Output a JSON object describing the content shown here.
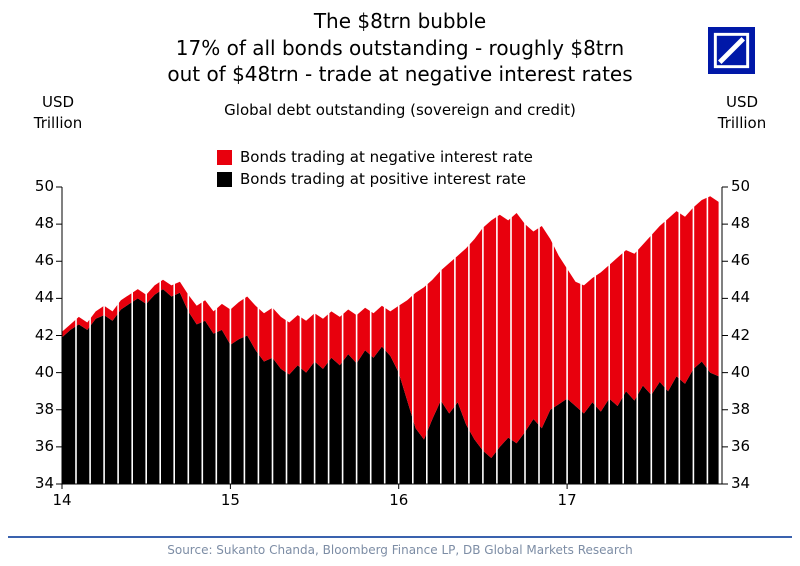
{
  "header": {
    "title": "The $8trn bubble",
    "subtitle_line1": "17% of all bonds outstanding - roughly $8trn",
    "subtitle_line2": "out of $48trn - trade at negative interest rates",
    "description": "Global debt outstanding (sovereign and credit)",
    "unit_left": {
      "line1": "USD",
      "line2": "Trillion"
    },
    "unit_right": {
      "line1": "USD",
      "line2": "Trillion"
    }
  },
  "logo": {
    "name": "deutsche-bank-logo",
    "color": "#0018A8"
  },
  "legend": [
    {
      "label": "Bonds trading at negative interest rate",
      "color": "#E8000D"
    },
    {
      "label": "Bonds trading at positive interest rate",
      "color": "#000000"
    }
  ],
  "footer": {
    "source": "Source: Sukanto Chanda, Bloomberg Finance LP, DB Global Markets Research",
    "rule_color": "#3A62AE"
  },
  "chart_data": {
    "type": "area",
    "stacked": true,
    "title": "Global debt outstanding (sovereign and credit)",
    "ylabel_left": "USD Trillion",
    "ylabel_right": "USD Trillion",
    "grid": false,
    "legend_position": "top",
    "ylim": [
      34,
      50
    ],
    "y_ticks": [
      34,
      36,
      38,
      40,
      42,
      44,
      46,
      48,
      50
    ],
    "xlim": [
      14,
      17.92
    ],
    "x_tick_positions": [
      14,
      15,
      16,
      17
    ],
    "x_tick_labels": [
      "14",
      "15",
      "16",
      "17"
    ],
    "x": [
      14,
      14.05,
      14.1,
      14.15,
      14.2,
      14.25,
      14.3,
      14.35,
      14.4,
      14.45,
      14.5,
      14.55,
      14.6,
      14.65,
      14.7,
      14.75,
      14.8,
      14.85,
      14.9,
      14.95,
      15,
      15.05,
      15.1,
      15.15,
      15.2,
      15.25,
      15.3,
      15.35,
      15.4,
      15.45,
      15.5,
      15.55,
      15.6,
      15.65,
      15.7,
      15.75,
      15.8,
      15.85,
      15.9,
      15.95,
      16,
      16.05,
      16.1,
      16.15,
      16.2,
      16.25,
      16.3,
      16.35,
      16.4,
      16.45,
      16.5,
      16.55,
      16.6,
      16.65,
      16.7,
      16.75,
      16.8,
      16.85,
      16.9,
      16.95,
      17,
      17.05,
      17.1,
      17.15,
      17.2,
      17.25,
      17.3,
      17.35,
      17.4,
      17.45,
      17.5,
      17.55,
      17.6,
      17.65,
      17.7,
      17.75,
      17.8,
      17.85,
      17.9
    ],
    "series": [
      {
        "name": "Bonds trading at positive interest rate",
        "color": "#000000",
        "values": [
          41.9,
          42.3,
          42.6,
          42.3,
          42.9,
          43.1,
          42.8,
          43.4,
          43.7,
          44.0,
          43.7,
          44.2,
          44.5,
          44.1,
          44.3,
          43.3,
          42.6,
          42.8,
          42.1,
          42.3,
          41.5,
          41.8,
          42.0,
          41.2,
          40.6,
          40.8,
          40.2,
          39.9,
          40.4,
          40.0,
          40.6,
          40.2,
          40.8,
          40.4,
          41.0,
          40.5,
          41.2,
          40.8,
          41.4,
          40.9,
          40.0,
          38.5,
          37.0,
          36.4,
          37.5,
          38.5,
          37.8,
          38.4,
          37.2,
          36.4,
          35.8,
          35.4,
          36.0,
          36.5,
          36.2,
          36.8,
          37.5,
          37.0,
          38.0,
          38.3,
          38.6,
          38.2,
          37.8,
          38.4,
          37.9,
          38.6,
          38.2,
          39.0,
          38.5,
          39.3,
          38.8,
          39.5,
          39.0,
          39.8,
          39.4,
          40.2,
          40.6,
          40.0,
          39.8
        ]
      },
      {
        "name": "Bonds trading at negative interest rate",
        "color": "#E8000D",
        "values": [
          0.3,
          0.3,
          0.4,
          0.4,
          0.4,
          0.5,
          0.5,
          0.5,
          0.5,
          0.5,
          0.5,
          0.5,
          0.5,
          0.6,
          0.6,
          0.9,
          1.0,
          1.1,
          1.2,
          1.4,
          1.9,
          2.0,
          2.1,
          2.4,
          2.6,
          2.7,
          2.8,
          2.8,
          2.7,
          2.8,
          2.6,
          2.7,
          2.5,
          2.6,
          2.4,
          2.6,
          2.3,
          2.4,
          2.2,
          2.4,
          3.6,
          5.4,
          7.3,
          8.2,
          7.5,
          7.0,
          8.1,
          7.9,
          9.5,
          10.8,
          12.0,
          12.8,
          12.5,
          11.7,
          12.4,
          11.2,
          10.1,
          10.9,
          9.2,
          8.0,
          7.0,
          6.7,
          6.9,
          6.7,
          7.5,
          7.2,
          8.0,
          7.6,
          7.9,
          7.6,
          8.6,
          8.4,
          9.3,
          8.9,
          9.0,
          8.7,
          8.7,
          9.5,
          9.4
        ]
      }
    ]
  }
}
